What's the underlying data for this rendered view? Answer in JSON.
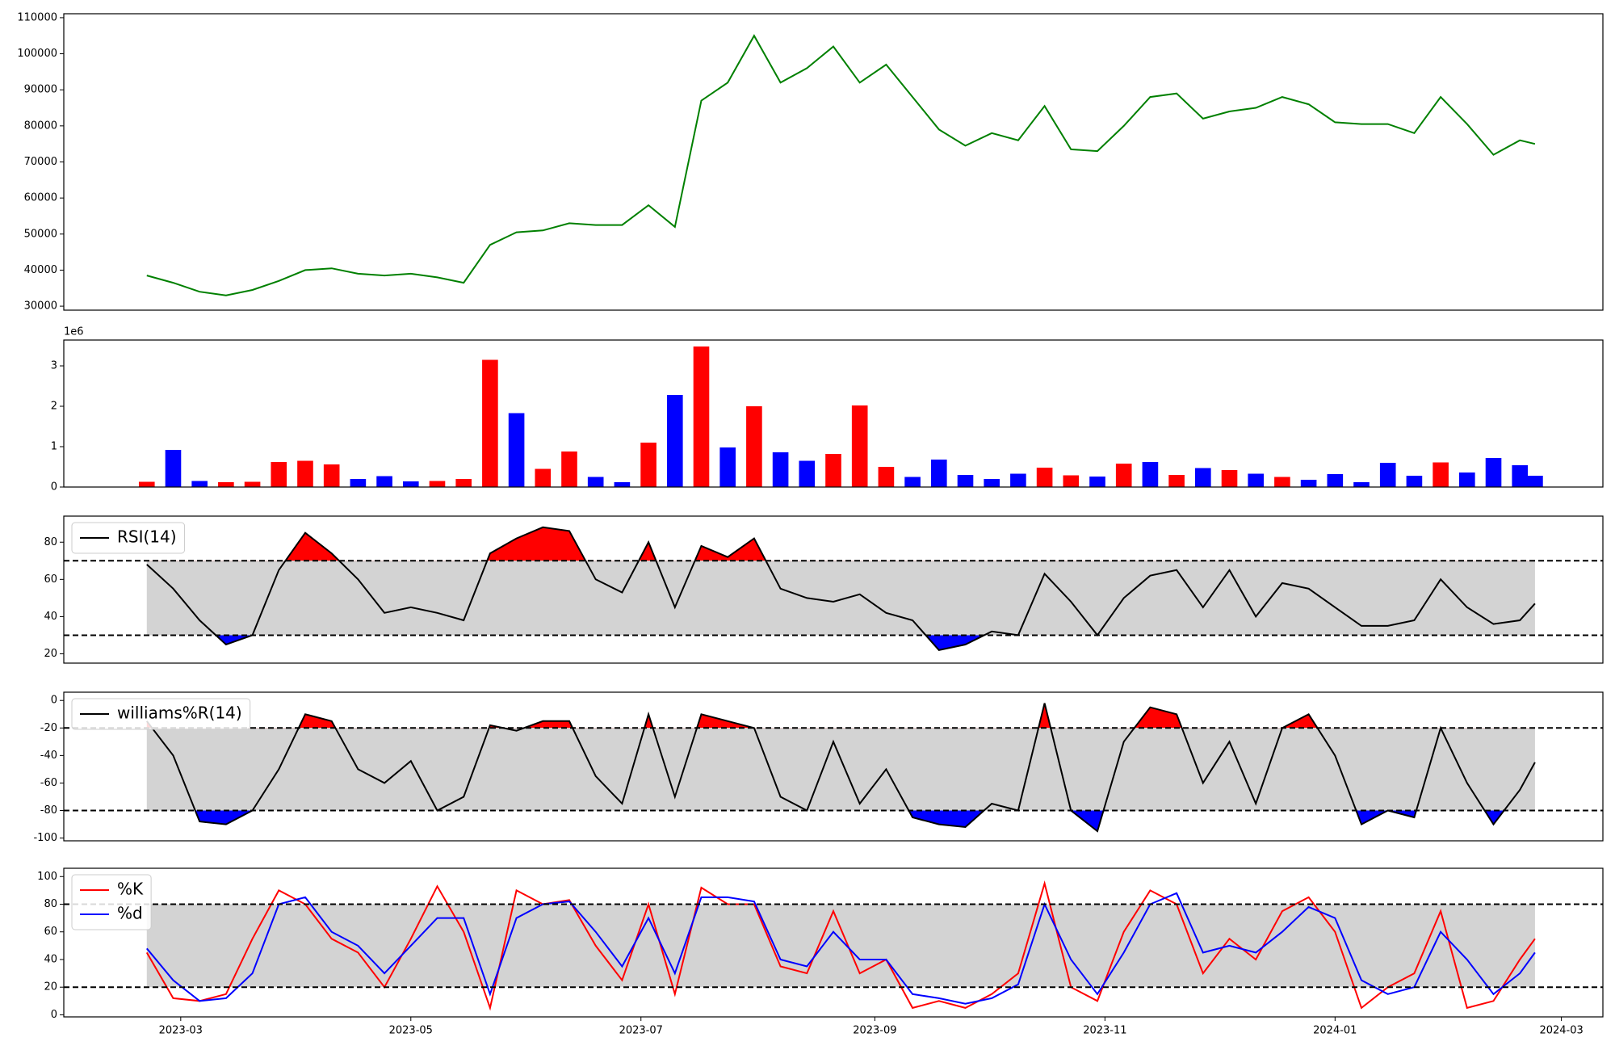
{
  "chart_data": [
    {
      "type": "line",
      "x": [
        "2023-02-20",
        "2023-02-27",
        "2023-03-06",
        "2023-03-13",
        "2023-03-20",
        "2023-03-27",
        "2023-04-03",
        "2023-04-10",
        "2023-04-17",
        "2023-04-24",
        "2023-05-01",
        "2023-05-08",
        "2023-05-15",
        "2023-05-22",
        "2023-05-29",
        "2023-06-05",
        "2023-06-12",
        "2023-06-19",
        "2023-06-26",
        "2023-07-03",
        "2023-07-10",
        "2023-07-17",
        "2023-07-24",
        "2023-07-31",
        "2023-08-07",
        "2023-08-14",
        "2023-08-21",
        "2023-08-28",
        "2023-09-04",
        "2023-09-11",
        "2023-09-18",
        "2023-09-25",
        "2023-10-02",
        "2023-10-09",
        "2023-10-16",
        "2023-10-23",
        "2023-10-30",
        "2023-11-06",
        "2023-11-13",
        "2023-11-20",
        "2023-11-27",
        "2023-12-04",
        "2023-12-11",
        "2023-12-18",
        "2023-12-25",
        "2024-01-01",
        "2024-01-08",
        "2024-01-15",
        "2024-01-22",
        "2024-01-29",
        "2024-02-05",
        "2024-02-12",
        "2024-02-19",
        "2024-02-23"
      ],
      "values": [
        38500,
        36500,
        34000,
        33000,
        34500,
        37000,
        40000,
        40500,
        39000,
        38500,
        39000,
        38000,
        36500,
        47000,
        50500,
        51000,
        53000,
        52500,
        52500,
        58000,
        52000,
        87000,
        92000,
        105000,
        92000,
        96000,
        102000,
        92000,
        97000,
        88000,
        79000,
        74500,
        78000,
        76000,
        85500,
        73500,
        73000,
        80000,
        88000,
        89000,
        82000,
        84000,
        85000,
        88000,
        86000,
        81000,
        80500,
        80500,
        78000,
        88000,
        80500,
        72000,
        76000,
        75000
      ],
      "color": "green",
      "xlim": [
        "2023-01-29",
        "2024-03-12"
      ],
      "ylim": [
        28900,
        111100
      ],
      "yticks": [
        30000,
        40000,
        50000,
        60000,
        70000,
        80000,
        90000,
        100000,
        110000
      ]
    },
    {
      "type": "bar",
      "x": [
        "2023-02-20",
        "2023-02-27",
        "2023-03-06",
        "2023-03-13",
        "2023-03-20",
        "2023-03-27",
        "2023-04-03",
        "2023-04-10",
        "2023-04-17",
        "2023-04-24",
        "2023-05-01",
        "2023-05-08",
        "2023-05-15",
        "2023-05-22",
        "2023-05-29",
        "2023-06-05",
        "2023-06-12",
        "2023-06-19",
        "2023-06-26",
        "2023-07-03",
        "2023-07-10",
        "2023-07-17",
        "2023-07-24",
        "2023-07-31",
        "2023-08-07",
        "2023-08-14",
        "2023-08-21",
        "2023-08-28",
        "2023-09-04",
        "2023-09-11",
        "2023-09-18",
        "2023-09-25",
        "2023-10-02",
        "2023-10-09",
        "2023-10-16",
        "2023-10-23",
        "2023-10-30",
        "2023-11-06",
        "2023-11-13",
        "2023-11-20",
        "2023-11-27",
        "2023-12-04",
        "2023-12-11",
        "2023-12-18",
        "2023-12-25",
        "2024-01-01",
        "2024-01-08",
        "2024-01-15",
        "2024-01-22",
        "2024-01-29",
        "2024-02-05",
        "2024-02-12",
        "2024-02-19",
        "2024-02-23"
      ],
      "values": [
        130000,
        920000,
        150000,
        120000,
        130000,
        620000,
        650000,
        560000,
        200000,
        270000,
        140000,
        150000,
        200000,
        3150000,
        1830000,
        450000,
        880000,
        250000,
        120000,
        1100000,
        2280000,
        3480000,
        980000,
        2000000,
        860000,
        650000,
        820000,
        2020000,
        500000,
        250000,
        680000,
        300000,
        200000,
        330000,
        480000,
        290000,
        260000,
        580000,
        620000,
        300000,
        470000,
        420000,
        330000,
        250000,
        180000,
        320000,
        120000,
        600000,
        280000,
        610000,
        360000,
        720000,
        540000,
        280000
      ],
      "colors": [
        "red",
        "blue",
        "blue",
        "red",
        "red",
        "red",
        "red",
        "red",
        "blue",
        "blue",
        "blue",
        "red",
        "red",
        "red",
        "blue",
        "red",
        "red",
        "blue",
        "blue",
        "red",
        "blue",
        "red",
        "blue",
        "red",
        "blue",
        "blue",
        "red",
        "red",
        "red",
        "blue",
        "blue",
        "blue",
        "blue",
        "blue",
        "red",
        "red",
        "blue",
        "red",
        "blue",
        "red",
        "blue",
        "red",
        "blue",
        "red",
        "blue",
        "blue",
        "blue",
        "blue",
        "blue",
        "red",
        "blue",
        "blue",
        "blue",
        "blue"
      ],
      "xlim": [
        "2023-01-29",
        "2024-03-12"
      ],
      "ylim": [
        0,
        3640000
      ],
      "yticks": [
        0,
        {
          "value": 1000000,
          "label": "1"
        },
        {
          "value": 2000000,
          "label": "2"
        },
        {
          "value": 3000000,
          "label": "3"
        }
      ],
      "y_offset_label": "1e6"
    },
    {
      "type": "line",
      "x": [
        "2023-02-20",
        "2023-02-27",
        "2023-03-06",
        "2023-03-13",
        "2023-03-20",
        "2023-03-27",
        "2023-04-03",
        "2023-04-10",
        "2023-04-17",
        "2023-04-24",
        "2023-05-01",
        "2023-05-08",
        "2023-05-15",
        "2023-05-22",
        "2023-05-29",
        "2023-06-05",
        "2023-06-12",
        "2023-06-19",
        "2023-06-26",
        "2023-07-03",
        "2023-07-10",
        "2023-07-17",
        "2023-07-24",
        "2023-07-31",
        "2023-08-07",
        "2023-08-14",
        "2023-08-21",
        "2023-08-28",
        "2023-09-04",
        "2023-09-11",
        "2023-09-18",
        "2023-09-25",
        "2023-10-02",
        "2023-10-09",
        "2023-10-16",
        "2023-10-23",
        "2023-10-30",
        "2023-11-06",
        "2023-11-13",
        "2023-11-20",
        "2023-11-27",
        "2023-12-04",
        "2023-12-11",
        "2023-12-18",
        "2023-12-25",
        "2024-01-01",
        "2024-01-08",
        "2024-01-15",
        "2024-01-22",
        "2024-01-29",
        "2024-02-05",
        "2024-02-12",
        "2024-02-19",
        "2024-02-23"
      ],
      "series": [
        {
          "name": "RSI(14)",
          "color": "black",
          "values": [
            68,
            55,
            38,
            25,
            30,
            65,
            85,
            74,
            60,
            42,
            45,
            42,
            38,
            74,
            82,
            88,
            86,
            60,
            53,
            80,
            45,
            78,
            72,
            82,
            55,
            50,
            48,
            52,
            42,
            38,
            22,
            25,
            32,
            30,
            63,
            48,
            30,
            50,
            62,
            65,
            45,
            65,
            40,
            58,
            55,
            45,
            35,
            35,
            38,
            60,
            45,
            36,
            38,
            47
          ]
        }
      ],
      "xlim": [
        "2023-01-29",
        "2024-03-12"
      ],
      "ylim": [
        15,
        94
      ],
      "yticks": [
        20,
        40,
        60,
        80
      ],
      "hlines": [
        70,
        30
      ],
      "band_color": "lightgray",
      "fill_above_color": "red",
      "fill_below_color": "blue",
      "legend": "upper left"
    },
    {
      "type": "line",
      "x": [
        "2023-02-20",
        "2023-02-27",
        "2023-03-06",
        "2023-03-13",
        "2023-03-20",
        "2023-03-27",
        "2023-04-03",
        "2023-04-10",
        "2023-04-17",
        "2023-04-24",
        "2023-05-01",
        "2023-05-08",
        "2023-05-15",
        "2023-05-22",
        "2023-05-29",
        "2023-06-05",
        "2023-06-12",
        "2023-06-19",
        "2023-06-26",
        "2023-07-03",
        "2023-07-10",
        "2023-07-17",
        "2023-07-24",
        "2023-07-31",
        "2023-08-07",
        "2023-08-14",
        "2023-08-21",
        "2023-08-28",
        "2023-09-04",
        "2023-09-11",
        "2023-09-18",
        "2023-09-25",
        "2023-10-02",
        "2023-10-09",
        "2023-10-16",
        "2023-10-23",
        "2023-10-30",
        "2023-11-06",
        "2023-11-13",
        "2023-11-20",
        "2023-11-27",
        "2023-12-04",
        "2023-12-11",
        "2023-12-18",
        "2023-12-25",
        "2024-01-01",
        "2024-01-08",
        "2024-01-15",
        "2024-01-22",
        "2024-01-29",
        "2024-02-05",
        "2024-02-12",
        "2024-02-19",
        "2024-02-23"
      ],
      "series": [
        {
          "name": "williams%R(14)",
          "color": "black",
          "values": [
            -15,
            -40,
            -88,
            -90,
            -80,
            -50,
            -10,
            -15,
            -50,
            -60,
            -44,
            -80,
            -70,
            -18,
            -22,
            -15,
            -15,
            -55,
            -75,
            -10,
            -70,
            -10,
            -15,
            -20,
            -70,
            -80,
            -30,
            -75,
            -50,
            -85,
            -90,
            -92,
            -75,
            -80,
            -2,
            -80,
            -95,
            -30,
            -5,
            -10,
            -60,
            -30,
            -75,
            -20,
            -10,
            -40,
            -90,
            -80,
            -85,
            -20,
            -60,
            -90,
            -65,
            -45
          ]
        }
      ],
      "xlim": [
        "2023-01-29",
        "2024-03-12"
      ],
      "ylim": [
        -102,
        6
      ],
      "yticks": [
        -100,
        -80,
        -60,
        -40,
        -20,
        0
      ],
      "hlines": [
        -20,
        -80
      ],
      "band_color": "lightgray",
      "fill_above_color": "red",
      "fill_below_color": "blue",
      "legend": "upper left"
    },
    {
      "type": "line",
      "x": [
        "2023-02-20",
        "2023-02-27",
        "2023-03-06",
        "2023-03-13",
        "2023-03-20",
        "2023-03-27",
        "2023-04-03",
        "2023-04-10",
        "2023-04-17",
        "2023-04-24",
        "2023-05-01",
        "2023-05-08",
        "2023-05-15",
        "2023-05-22",
        "2023-05-29",
        "2023-06-05",
        "2023-06-12",
        "2023-06-19",
        "2023-06-26",
        "2023-07-03",
        "2023-07-10",
        "2023-07-17",
        "2023-07-24",
        "2023-07-31",
        "2023-08-07",
        "2023-08-14",
        "2023-08-21",
        "2023-08-28",
        "2023-09-04",
        "2023-09-11",
        "2023-09-18",
        "2023-09-25",
        "2023-10-02",
        "2023-10-09",
        "2023-10-16",
        "2023-10-23",
        "2023-10-30",
        "2023-11-06",
        "2023-11-13",
        "2023-11-20",
        "2023-11-27",
        "2023-12-04",
        "2023-12-11",
        "2023-12-18",
        "2023-12-25",
        "2024-01-01",
        "2024-01-08",
        "2024-01-15",
        "2024-01-22",
        "2024-01-29",
        "2024-02-05",
        "2024-02-12",
        "2024-02-19",
        "2024-02-23"
      ],
      "series": [
        {
          "name": "%K",
          "color": "red",
          "values": [
            45,
            12,
            10,
            15,
            55,
            90,
            80,
            55,
            45,
            20,
            55,
            93,
            60,
            5,
            90,
            80,
            83,
            50,
            25,
            80,
            15,
            92,
            80,
            80,
            35,
            30,
            75,
            30,
            40,
            5,
            10,
            5,
            15,
            30,
            95,
            20,
            10,
            60,
            90,
            80,
            30,
            55,
            40,
            75,
            85,
            60,
            5,
            20,
            30,
            75,
            5,
            10,
            40,
            55
          ]
        },
        {
          "name": "%d",
          "color": "blue",
          "values": [
            48,
            25,
            10,
            12,
            30,
            80,
            85,
            60,
            50,
            30,
            50,
            70,
            70,
            15,
            70,
            80,
            82,
            60,
            35,
            70,
            30,
            85,
            85,
            82,
            40,
            35,
            60,
            40,
            40,
            15,
            12,
            8,
            12,
            22,
            80,
            40,
            15,
            45,
            80,
            88,
            45,
            50,
            45,
            60,
            78,
            70,
            25,
            15,
            20,
            60,
            40,
            15,
            30,
            45
          ]
        }
      ],
      "xlim": [
        "2023-01-29",
        "2024-03-12"
      ],
      "ylim": [
        -1.5,
        106
      ],
      "yticks": [
        0,
        20,
        40,
        60,
        80,
        100
      ],
      "xticks": [
        {
          "value": "2023-03-01",
          "label": "2023-03"
        },
        {
          "value": "2023-05-01",
          "label": "2023-05"
        },
        {
          "value": "2023-07-01",
          "label": "2023-07"
        },
        {
          "value": "2023-09-01",
          "label": "2023-09"
        },
        {
          "value": "2023-11-01",
          "label": "2023-11"
        },
        {
          "value": "2024-01-01",
          "label": "2024-01"
        },
        {
          "value": "2024-03-01",
          "label": "2024-03"
        }
      ],
      "hlines": [
        80,
        20
      ],
      "band_color": "lightgray",
      "legend": "upper left"
    }
  ]
}
